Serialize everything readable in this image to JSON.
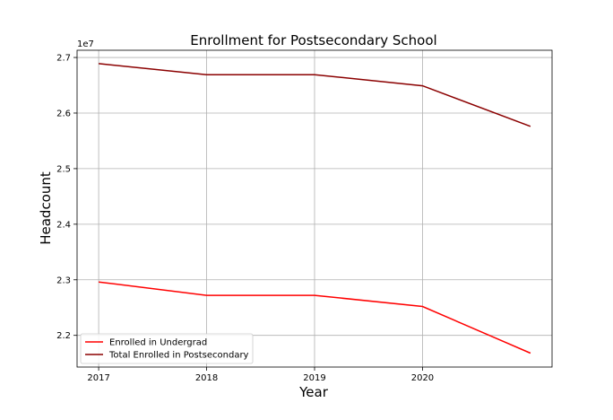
{
  "chart_data": {
    "type": "line",
    "title": "Enrollment for Postsecondary School",
    "xlabel": "Year",
    "ylabel": "Headcount",
    "offset_label": "1e7",
    "x": [
      2017,
      2018,
      2019,
      2020,
      2021
    ],
    "x_tick_labels": [
      "2017",
      "2018",
      "2019",
      "2020"
    ],
    "y_ticks": [
      2.2,
      2.3,
      2.4,
      2.5,
      2.6,
      2.7
    ],
    "y_tick_labels": [
      "2.2",
      "2.3",
      "2.4",
      "2.5",
      "2.6",
      "2.7"
    ],
    "ylim": [
      2.143,
      2.713
    ],
    "xlim": [
      2016.8,
      2021.2
    ],
    "grid": true,
    "legend_position": "lower-left",
    "series": [
      {
        "name": "Enrolled in Undergrad",
        "color": "#ff0000",
        "values": [
          2.296,
          2.272,
          2.272,
          2.252,
          2.168
        ]
      },
      {
        "name": "Total Enrolled in Postsecondary",
        "color": "#8b0000",
        "values": [
          2.689,
          2.669,
          2.669,
          2.649,
          2.576
        ]
      }
    ]
  }
}
